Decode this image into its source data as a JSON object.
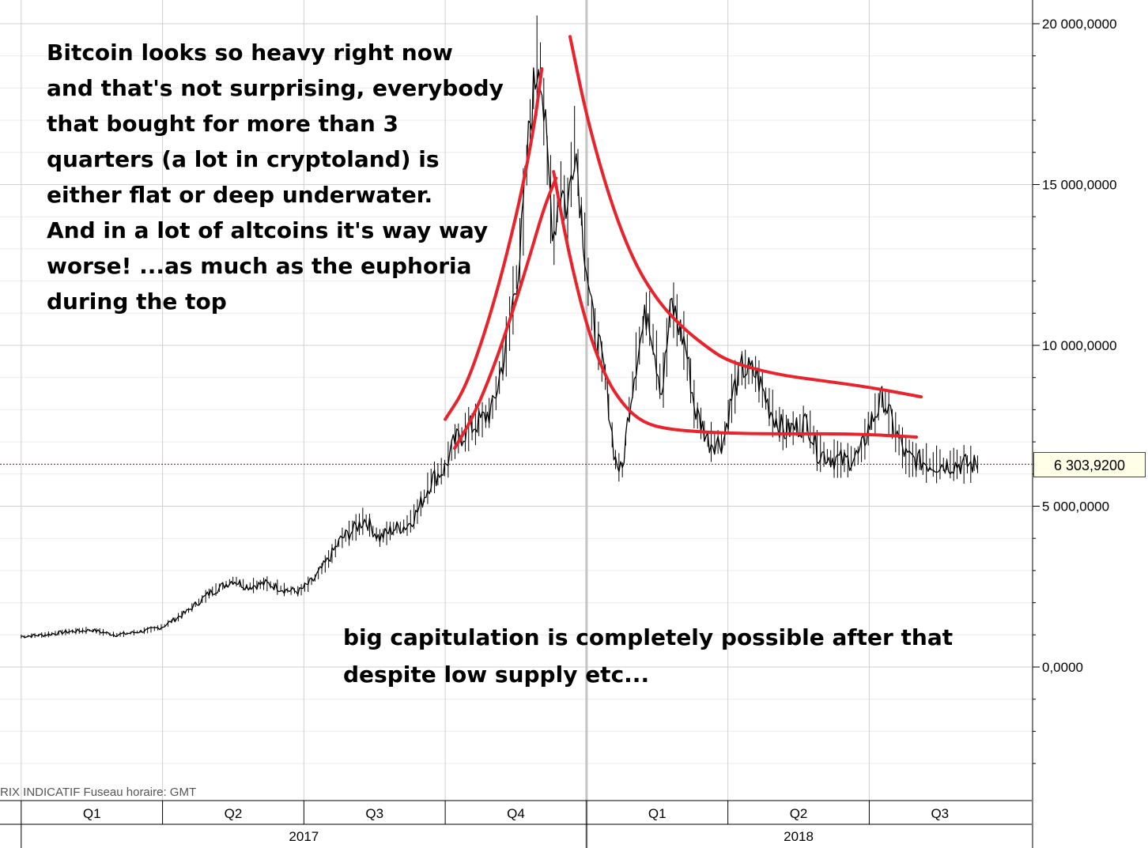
{
  "notes": {
    "top": [
      "Bitcoin looks so heavy right now",
      "and that's not surprising, everybody",
      "that bought for more than 3",
      "quarters (a lot in cryptoland) is",
      "either flat or deep underwater.",
      "And in a lot of altcoins it's way way",
      "worse! ...as much as the euphoria",
      "during the top"
    ],
    "bottom": [
      "big capitulation is completely possible after that",
      "despite low supply etc..."
    ]
  },
  "footer_label": "RIX INDICATIF   Fuseau horaire: GMT",
  "last_value_label": "6 303,9200",
  "colors": {
    "price": "#000000",
    "annotation": "#e8232b",
    "grid": "#d0d0d0",
    "last_line": "#b00000"
  },
  "chart_data": {
    "type": "line",
    "title": "",
    "xlabel": "",
    "ylabel": "",
    "ylim": [
      -4000,
      20000
    ],
    "y_ticks": [
      {
        "value": 20000,
        "label": "20 000,0000"
      },
      {
        "value": 15000,
        "label": "15 000,0000"
      },
      {
        "value": 10000,
        "label": "10 000,0000"
      },
      {
        "value": 5000,
        "label": "5 000,0000"
      },
      {
        "value": 0,
        "label": "0,0000"
      }
    ],
    "quarters": [
      {
        "label": "Q1",
        "start": 0,
        "end": 3
      },
      {
        "label": "Q2",
        "start": 3,
        "end": 6
      },
      {
        "label": "Q3",
        "start": 6,
        "end": 9
      },
      {
        "label": "Q4",
        "start": 9,
        "end": 12
      },
      {
        "label": "Q1",
        "start": 12,
        "end": 15
      },
      {
        "label": "Q2",
        "start": 15,
        "end": 18
      },
      {
        "label": "Q3",
        "start": 18,
        "end": 21
      }
    ],
    "years": [
      {
        "label": "2017",
        "start": 0,
        "end": 12
      },
      {
        "label": "2018",
        "start": 12,
        "end": 21
      }
    ],
    "xlim_months": [
      -0.45,
      21.45
    ],
    "last_value": 6303.92,
    "series": [
      {
        "name": "Bitcoin price",
        "months": [
          0.0,
          0.5,
          1.0,
          1.5,
          2.0,
          2.3,
          2.7,
          3.0,
          3.5,
          4.0,
          4.5,
          4.8,
          5.2,
          5.6,
          5.9,
          6.2,
          6.5,
          6.8,
          7.0,
          7.3,
          7.6,
          7.9,
          8.2,
          8.4,
          8.7,
          9.0,
          9.2,
          9.5,
          9.8,
          10.0,
          10.3,
          10.6,
          10.8,
          11.0,
          11.15,
          11.3,
          11.45,
          11.6,
          11.75,
          11.9,
          12.1,
          12.4,
          12.6,
          12.75,
          12.9,
          13.05,
          13.3,
          13.6,
          13.8,
          14.1,
          14.3,
          14.6,
          14.9,
          15.1,
          15.3,
          15.6,
          15.9,
          16.2,
          16.5,
          16.7,
          16.9,
          17.2,
          17.5,
          17.8,
          18.0,
          18.3,
          18.5,
          18.8,
          19.1,
          19.3,
          19.6,
          19.9,
          20.1,
          20.3
        ],
        "values": [
          950,
          1000,
          1100,
          1150,
          1000,
          1050,
          1150,
          1250,
          1700,
          2300,
          2700,
          2500,
          2600,
          2400,
          2350,
          2700,
          3300,
          4000,
          4200,
          4600,
          4000,
          4300,
          4400,
          4800,
          5800,
          6200,
          7000,
          7400,
          7700,
          8000,
          10000,
          13000,
          17000,
          19300,
          16000,
          13500,
          15000,
          14200,
          16500,
          14000,
          11000,
          9000,
          6500,
          6000,
          8000,
          9500,
          11200,
          8500,
          11300,
          10000,
          8000,
          7000,
          7000,
          8500,
          9300,
          9100,
          8000,
          7300,
          7500,
          7600,
          6700,
          6500,
          6400,
          6600,
          7500,
          8400,
          7500,
          6500,
          6400,
          6300,
          6300,
          6300,
          6300,
          6300
        ]
      }
    ],
    "annotations": [
      {
        "name": "rise-curve-outer",
        "months": [
          9.0,
          9.4,
          9.8,
          10.2,
          10.6,
          10.9,
          11.05
        ],
        "values": [
          7700,
          8600,
          10200,
          12200,
          14600,
          16900,
          18600
        ]
      },
      {
        "name": "rise-curve-inner",
        "months": [
          9.2,
          9.6,
          10.0,
          10.4,
          10.8,
          11.1,
          11.35
        ],
        "values": [
          6800,
          7800,
          9200,
          10900,
          12800,
          14300,
          15200
        ]
      },
      {
        "name": "decay-curve-upper",
        "months": [
          11.65,
          12.0,
          12.5,
          13.0,
          13.5,
          14.0,
          14.5,
          15.0,
          16.0,
          17.0,
          18.0,
          19.1
        ],
        "values": [
          19600,
          17100,
          14500,
          12600,
          11400,
          10600,
          10000,
          9500,
          9100,
          8900,
          8700,
          8400
        ]
      },
      {
        "name": "decay-curve-lower",
        "months": [
          11.3,
          11.6,
          12.0,
          12.4,
          12.8,
          13.2,
          13.7,
          14.5,
          15.5,
          16.5,
          17.5,
          18.4,
          19.0
        ],
        "values": [
          15400,
          13000,
          10600,
          9000,
          8100,
          7600,
          7400,
          7300,
          7250,
          7250,
          7250,
          7200,
          7150
        ]
      }
    ]
  }
}
